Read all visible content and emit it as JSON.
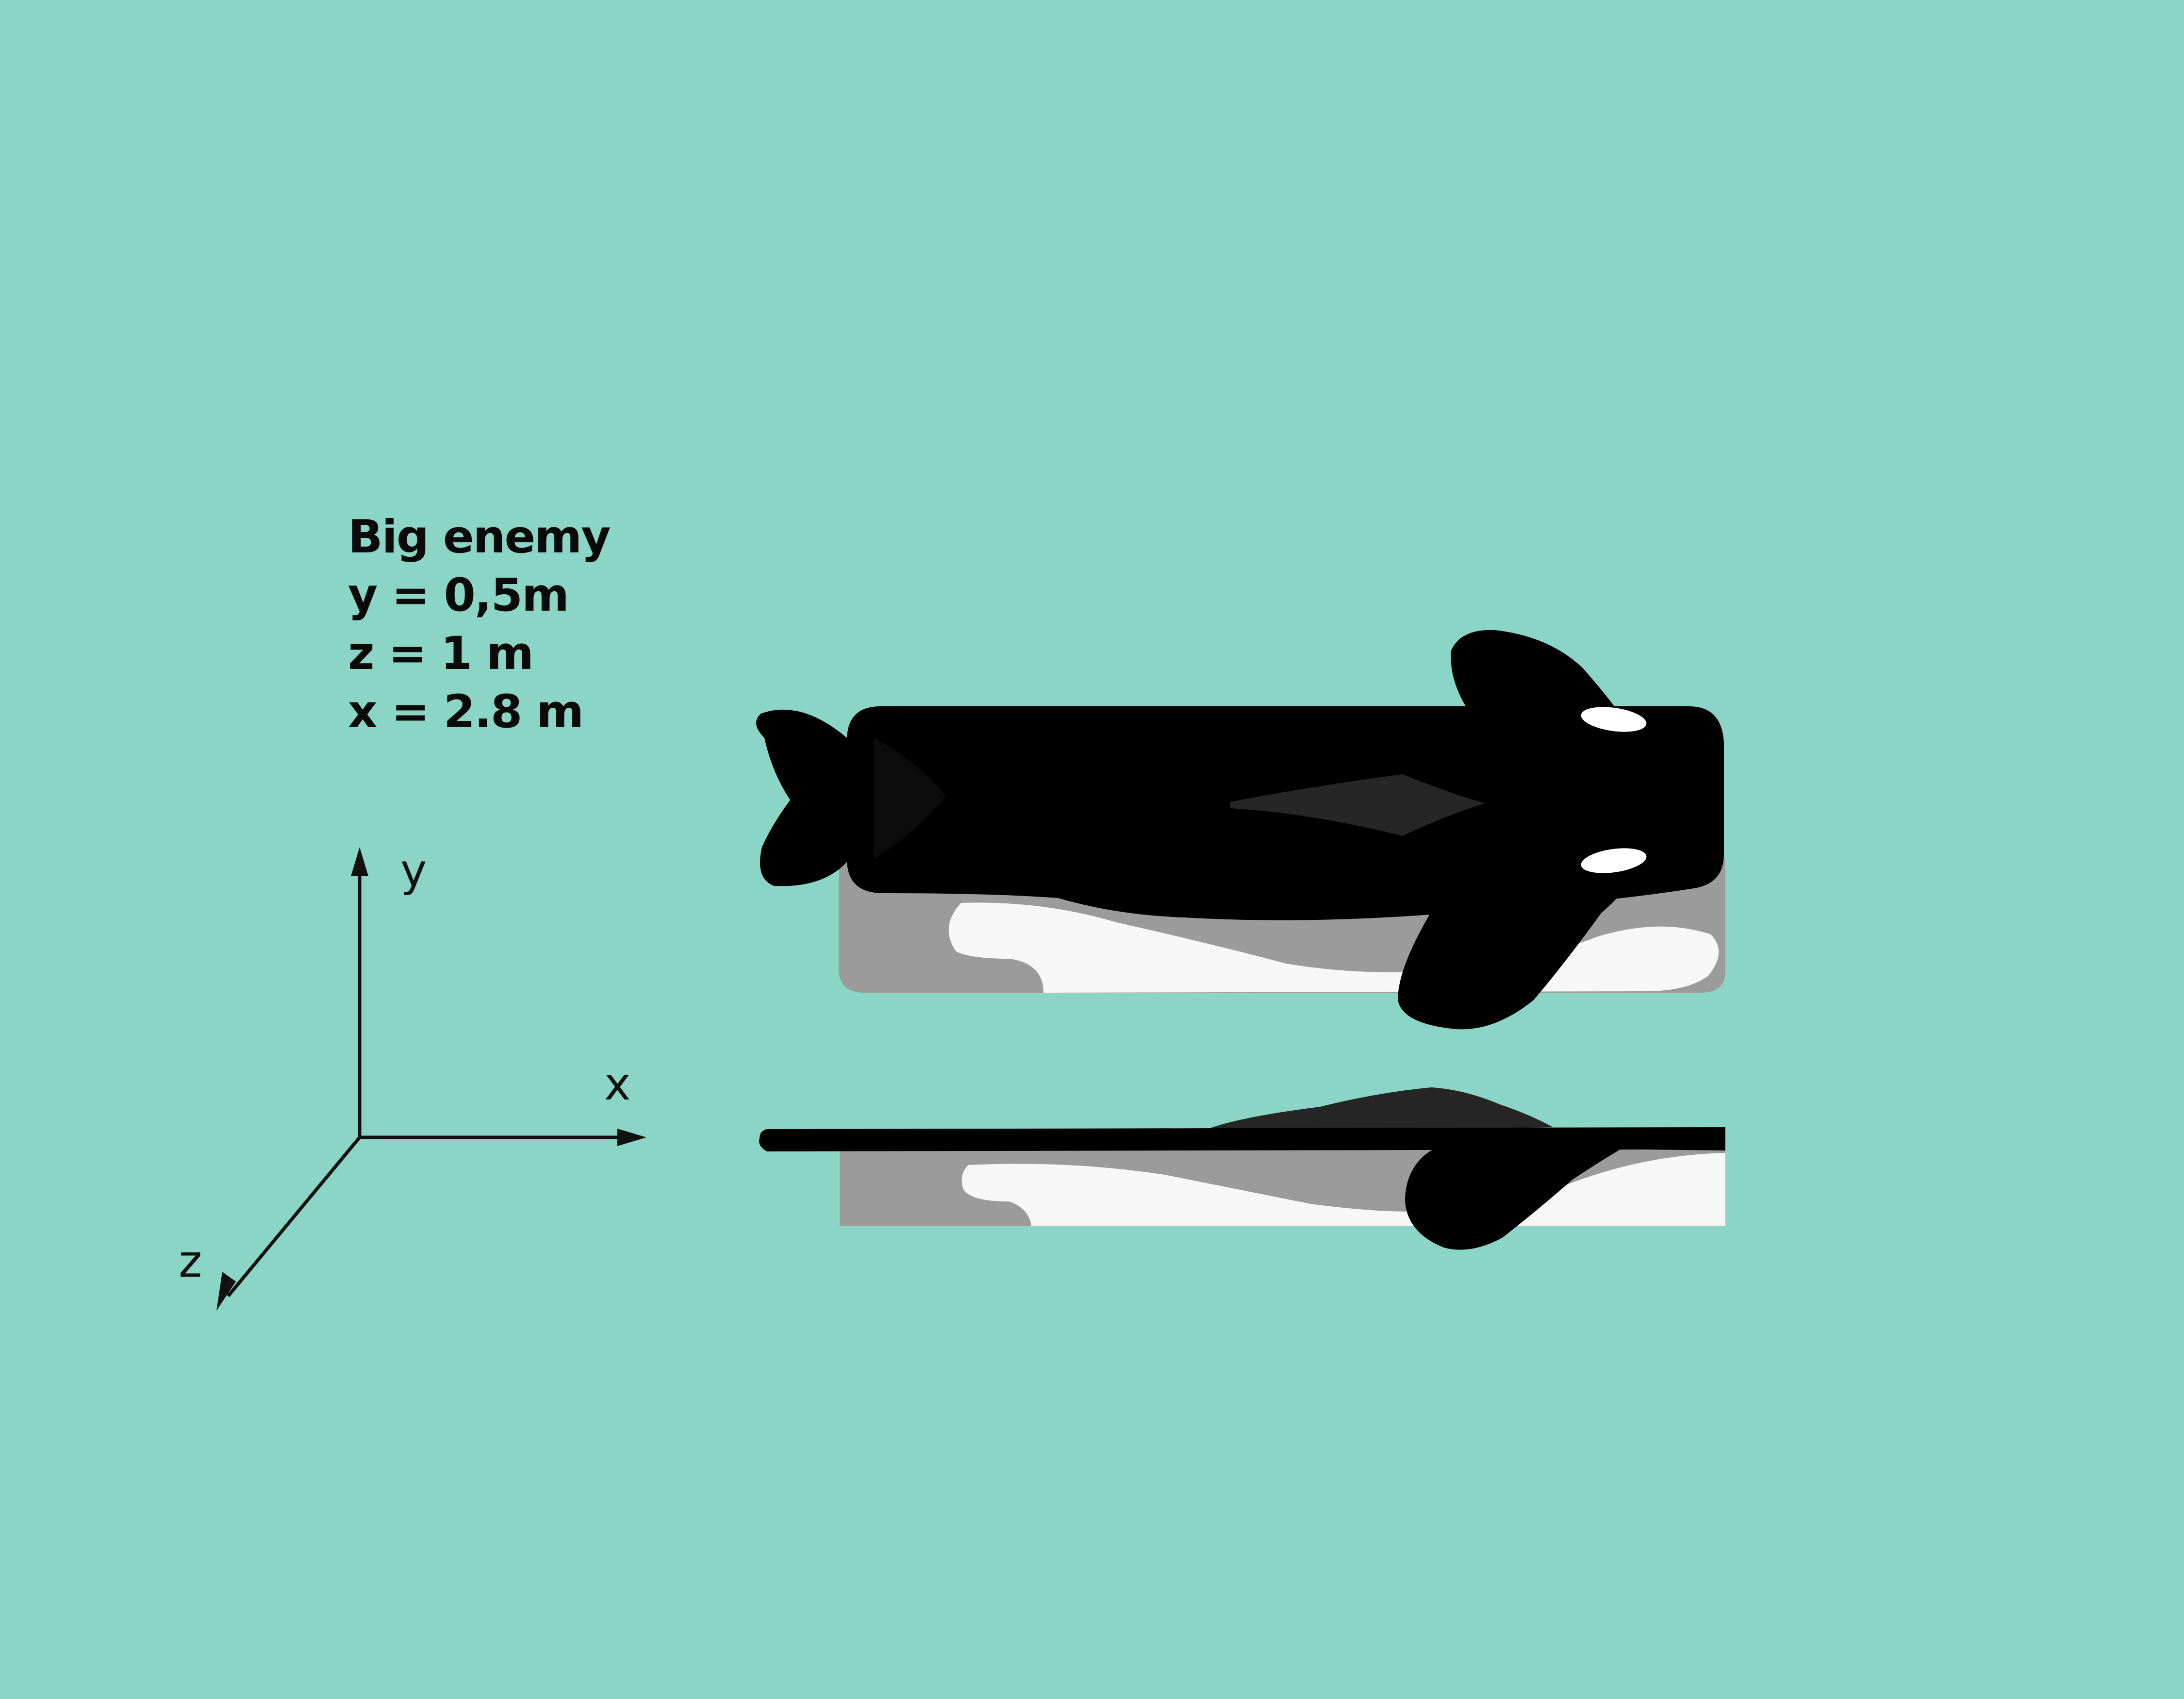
{
  "title": "Big enemy",
  "dimensions": {
    "y": "y = 0,5m",
    "z": "z = 1 m",
    "x": "x = 2.8 m"
  },
  "axes": {
    "x": "x",
    "y": "y",
    "z": "z"
  },
  "colors": {
    "background": "#8bd5c7",
    "body": "#000000",
    "belly_grey": "#9b9b9b",
    "belly_white": "#f7f7f7",
    "dorsal": "#262626",
    "eye": "#ffffff"
  }
}
